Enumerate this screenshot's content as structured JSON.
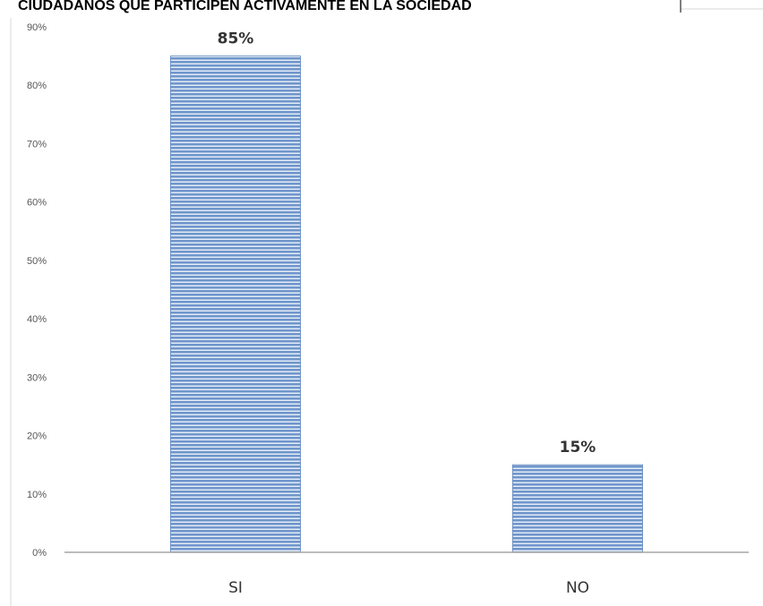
{
  "chart_data": {
    "type": "bar",
    "title": "CIUDADANOS QUE PARTICIPEN ACTIVAMENTE EN LA SOCIEDAD",
    "categories": [
      "SI",
      "NO"
    ],
    "values": [
      85,
      15
    ],
    "data_labels": [
      "85%",
      "15%"
    ],
    "ylim": [
      0,
      90
    ],
    "y_ticks": [
      0,
      10,
      20,
      30,
      40,
      50,
      60,
      70,
      80,
      90
    ],
    "y_tick_labels": [
      "0%",
      "10%",
      "20%",
      "30%",
      "40%",
      "50%",
      "60%",
      "70%",
      "80%",
      "90%"
    ],
    "xlabel": "",
    "ylabel": "",
    "grid": false,
    "legend": "none",
    "bar_color": "#6f96cc",
    "bar_stripe_color": "#ffffff"
  }
}
